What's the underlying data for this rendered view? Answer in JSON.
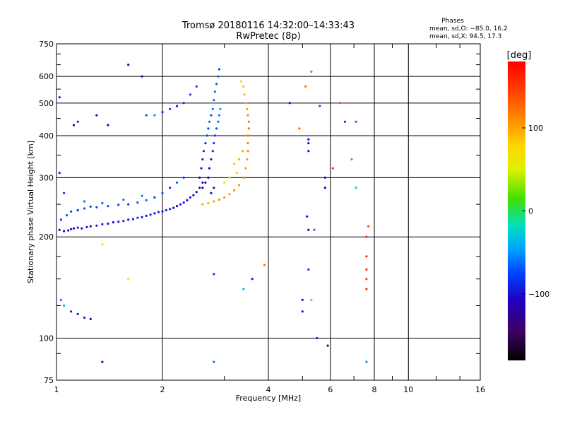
{
  "chart_data": {
    "type": "scatter",
    "title": "Tromsø 20180116 14:32:00–14:33:43",
    "subtitle": "RwPretec (8p)",
    "xlabel": "Frequency [MHz]",
    "ylabel": "Stationary phase Virtual Height [km]",
    "x_scale": "log",
    "y_scale": "log",
    "xlim": [
      1,
      16
    ],
    "ylim": [
      75,
      750
    ],
    "x_ticks": [
      {
        "value": 1,
        "label": "1"
      },
      {
        "value": 2,
        "label": "2"
      },
      {
        "value": 4,
        "label": "4"
      },
      {
        "value": 6,
        "label": "6"
      },
      {
        "value": 8,
        "label": "8"
      },
      {
        "value": 10,
        "label": "10"
      },
      {
        "value": 16,
        "label": "16"
      }
    ],
    "y_ticks": [
      {
        "value": 75,
        "label": "75"
      },
      {
        "value": 100,
        "label": "100"
      },
      {
        "value": 200,
        "label": "200"
      },
      {
        "value": 300,
        "label": "300"
      },
      {
        "value": 400,
        "label": "400"
      },
      {
        "value": 500,
        "label": "500"
      },
      {
        "value": 600,
        "label": "600"
      },
      {
        "value": 750,
        "label": "750"
      }
    ],
    "grid": true,
    "stats": {
      "heading": "Phases",
      "line_o": "mean, sd,O: −85.0, 16.2",
      "line_x": "mean, sd,X:  94.5, 17.3"
    },
    "colorbar": {
      "label": "[deg]",
      "min": -180,
      "max": 180,
      "ticks": [
        {
          "value": 100,
          "label": "100"
        },
        {
          "value": 0,
          "label": "0"
        },
        {
          "value": -100,
          "label": "−100"
        }
      ]
    },
    "series": [
      {
        "points": [
          [
            1.02,
            210,
            -105
          ],
          [
            1.05,
            208,
            -110
          ],
          [
            1.08,
            209,
            -100
          ],
          [
            1.1,
            211,
            -98
          ],
          [
            1.12,
            212,
            -105
          ],
          [
            1.15,
            213,
            -92
          ],
          [
            1.18,
            212,
            -100
          ],
          [
            1.22,
            214,
            -95
          ],
          [
            1.25,
            215,
            -110
          ],
          [
            1.3,
            216,
            -100
          ],
          [
            1.35,
            218,
            -92
          ],
          [
            1.4,
            219,
            -100
          ],
          [
            1.45,
            221,
            -105
          ],
          [
            1.5,
            222,
            -95
          ],
          [
            1.55,
            223,
            -90
          ],
          [
            1.6,
            225,
            -100
          ],
          [
            1.65,
            226,
            -95
          ],
          [
            1.7,
            228,
            -85
          ],
          [
            1.75,
            229,
            -95
          ],
          [
            1.8,
            231,
            -100
          ],
          [
            1.85,
            233,
            -92
          ],
          [
            1.9,
            235,
            -100
          ],
          [
            1.95,
            237,
            -95
          ],
          [
            2.0,
            238,
            -100
          ],
          [
            2.05,
            240,
            -90
          ],
          [
            2.1,
            242,
            -95
          ],
          [
            2.15,
            244,
            -100
          ],
          [
            2.2,
            247,
            -110
          ],
          [
            2.25,
            250,
            -100
          ],
          [
            2.3,
            253,
            -95
          ],
          [
            2.35,
            257,
            -105
          ],
          [
            2.4,
            262,
            -100
          ],
          [
            2.45,
            266,
            -110
          ],
          [
            2.5,
            272,
            -100
          ],
          [
            2.55,
            280,
            -115
          ],
          [
            2.6,
            290,
            -100
          ],
          [
            1.03,
            225,
            -80
          ],
          [
            1.07,
            232,
            -70
          ],
          [
            1.1,
            238,
            -75
          ],
          [
            1.15,
            240,
            -90
          ],
          [
            1.2,
            243,
            -70
          ],
          [
            1.25,
            246,
            -75
          ],
          [
            1.3,
            245,
            -85
          ],
          [
            1.4,
            247,
            -70
          ],
          [
            1.5,
            249,
            -75
          ],
          [
            1.6,
            250,
            -85
          ],
          [
            1.7,
            253,
            -70
          ],
          [
            1.8,
            257,
            -65
          ],
          [
            1.9,
            262,
            -75
          ],
          [
            2.0,
            270,
            -70
          ],
          [
            2.1,
            280,
            -80
          ],
          [
            2.2,
            290,
            -65
          ],
          [
            2.3,
            300,
            -75
          ],
          [
            1.2,
            255,
            -60
          ],
          [
            1.35,
            252,
            -65
          ],
          [
            1.55,
            258,
            -60
          ],
          [
            1.75,
            265,
            -55
          ]
        ]
      },
      {
        "points": [
          [
            2.55,
            300,
            -100
          ],
          [
            2.58,
            320,
            -95
          ],
          [
            2.6,
            340,
            -90
          ],
          [
            2.62,
            360,
            -85
          ],
          [
            2.65,
            380,
            -80
          ],
          [
            2.68,
            400,
            -75
          ],
          [
            2.7,
            420,
            -70
          ],
          [
            2.72,
            440,
            -65
          ],
          [
            2.75,
            460,
            -70
          ],
          [
            2.78,
            480,
            -60
          ],
          [
            2.8,
            510,
            -65
          ],
          [
            2.82,
            540,
            -60
          ],
          [
            2.85,
            570,
            -70
          ],
          [
            2.88,
            600,
            -65
          ],
          [
            2.9,
            630,
            -75
          ],
          [
            2.7,
            300,
            -120
          ],
          [
            2.72,
            320,
            -110
          ],
          [
            2.75,
            340,
            -95
          ],
          [
            2.78,
            360,
            -90
          ],
          [
            2.8,
            380,
            -80
          ],
          [
            2.82,
            400,
            -75
          ],
          [
            2.85,
            420,
            -70
          ],
          [
            2.88,
            440,
            -60
          ],
          [
            2.9,
            460,
            -55
          ],
          [
            2.92,
            480,
            -50
          ],
          [
            2.6,
            280,
            -130
          ],
          [
            2.65,
            290,
            -125
          ],
          [
            2.75,
            270,
            -110
          ],
          [
            2.8,
            280,
            -100
          ],
          [
            2.5,
            560,
            -75
          ],
          [
            2.4,
            530,
            -80
          ],
          [
            2.3,
            500,
            -90
          ],
          [
            2.2,
            490,
            -95
          ],
          [
            2.1,
            480,
            -80
          ],
          [
            2.0,
            470,
            -85
          ],
          [
            1.9,
            460,
            -55
          ],
          [
            1.8,
            460,
            -70
          ]
        ]
      },
      {
        "points": [
          [
            2.6,
            250,
            100
          ],
          [
            2.7,
            252,
            95
          ],
          [
            2.8,
            255,
            100
          ],
          [
            2.9,
            258,
            110
          ],
          [
            3.0,
            262,
            105
          ],
          [
            3.1,
            268,
            100
          ],
          [
            3.2,
            275,
            110
          ],
          [
            3.3,
            285,
            105
          ],
          [
            3.4,
            300,
            115
          ],
          [
            3.45,
            320,
            100
          ],
          [
            3.48,
            340,
            105
          ],
          [
            3.5,
            360,
            110
          ],
          [
            3.5,
            380,
            115
          ],
          [
            3.5,
            400,
            120
          ],
          [
            3.52,
            420,
            125
          ],
          [
            3.52,
            440,
            118
          ],
          [
            3.5,
            460,
            110
          ],
          [
            3.48,
            480,
            105
          ],
          [
            3.45,
            500,
            100
          ],
          [
            3.42,
            530,
            95
          ],
          [
            3.4,
            560,
            90
          ],
          [
            3.35,
            580,
            80
          ],
          [
            3.2,
            330,
            90
          ],
          [
            3.3,
            340,
            95
          ],
          [
            3.38,
            360,
            100
          ],
          [
            3.1,
            300,
            75
          ],
          [
            3.0,
            290,
            70
          ],
          [
            3.25,
            310,
            85
          ]
        ]
      },
      {
        "points": [
          [
            1.02,
            520,
            -90
          ],
          [
            1.3,
            460,
            -100
          ],
          [
            1.4,
            430,
            -105
          ],
          [
            1.6,
            650,
            -110
          ],
          [
            1.75,
            600,
            -100
          ],
          [
            1.02,
            310,
            -95
          ],
          [
            1.05,
            270,
            -85
          ],
          [
            1.12,
            430,
            -120
          ],
          [
            1.15,
            440,
            -90
          ],
          [
            1.35,
            190,
            60
          ],
          [
            1.6,
            150,
            50
          ],
          [
            1.03,
            130,
            -60
          ],
          [
            1.05,
            125,
            -40
          ],
          [
            1.1,
            120,
            -100
          ],
          [
            1.15,
            118,
            -105
          ],
          [
            1.2,
            115,
            -95
          ],
          [
            1.25,
            114,
            -110
          ],
          [
            1.35,
            85,
            -120
          ],
          [
            2.8,
            155,
            -80
          ],
          [
            2.8,
            85,
            -60
          ],
          [
            3.4,
            140,
            -40
          ],
          [
            3.6,
            150,
            -90
          ],
          [
            3.9,
            165,
            120
          ],
          [
            4.6,
            500,
            -110
          ],
          [
            4.9,
            420,
            130
          ],
          [
            5.0,
            120,
            -100
          ],
          [
            5.0,
            130,
            -120
          ],
          [
            5.1,
            560,
            120
          ],
          [
            5.15,
            230,
            -110
          ],
          [
            5.2,
            210,
            -115
          ],
          [
            5.2,
            360,
            -100
          ],
          [
            5.3,
            130,
            110
          ],
          [
            5.3,
            620,
            130
          ],
          [
            5.5,
            100,
            -90
          ],
          [
            5.6,
            490,
            -70
          ],
          [
            5.8,
            300,
            -100
          ],
          [
            5.8,
            280,
            -110
          ],
          [
            5.9,
            95,
            -110
          ],
          [
            6.1,
            320,
            150
          ],
          [
            6.4,
            500,
            140
          ],
          [
            6.6,
            440,
            -80
          ],
          [
            6.9,
            340,
            -40
          ],
          [
            7.1,
            440,
            -60
          ],
          [
            7.1,
            280,
            -20
          ],
          [
            7.6,
            200,
            160
          ],
          [
            7.6,
            175,
            160
          ],
          [
            7.6,
            160,
            160
          ],
          [
            7.6,
            150,
            140
          ],
          [
            7.6,
            140,
            155
          ],
          [
            7.6,
            85,
            -50
          ],
          [
            7.7,
            215,
            140
          ],
          [
            5.2,
            160,
            -80
          ],
          [
            5.4,
            210,
            -60
          ],
          [
            5.2,
            380,
            -115
          ],
          [
            5.2,
            390,
            -110
          ]
        ]
      }
    ]
  }
}
